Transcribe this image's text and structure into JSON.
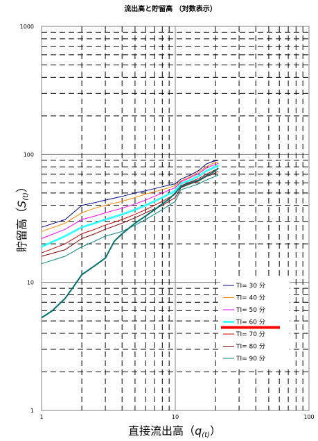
{
  "chart_data": {
    "type": "line",
    "title": "流出高と貯留高 （対数表示）",
    "xlabel": {
      "main": "直接流出高",
      "open": "（",
      "var": "q",
      "sub": "(t)",
      "close": "）"
    },
    "ylabel": {
      "main": "貯留高",
      "open": "（",
      "var": "S",
      "sub": "(t)",
      "close": "）"
    },
    "x_scale": "log",
    "y_scale": "log",
    "xlim": [
      1,
      100
    ],
    "ylim": [
      1,
      1000
    ],
    "x_ticks": [
      1,
      10,
      100
    ],
    "y_ticks": [
      1,
      10,
      100,
      1000
    ],
    "x_tick_labels": [
      "1",
      "10",
      "100"
    ],
    "y_tick_labels": [
      "1",
      "10",
      "100",
      "1000"
    ],
    "grid": true,
    "legend_position": "bottom-right",
    "series": [
      {
        "name": "TI= 30  分",
        "color": "#000080",
        "width": 1,
        "points": [
          [
            1,
            27
          ],
          [
            1.5,
            31
          ],
          [
            2,
            40
          ],
          [
            2.5,
            42
          ],
          [
            3,
            44
          ],
          [
            4,
            47
          ],
          [
            5,
            50
          ],
          [
            6,
            52
          ],
          [
            8,
            56
          ],
          [
            10,
            59
          ],
          [
            11,
            64
          ],
          [
            13,
            69
          ],
          [
            15,
            75
          ],
          [
            17,
            84
          ],
          [
            19,
            88
          ],
          [
            21,
            90
          ]
        ]
      },
      {
        "name": "TI= 40  分",
        "color": "#FF8000",
        "width": 1,
        "points": [
          [
            1,
            25
          ],
          [
            1.5,
            29
          ],
          [
            2,
            35
          ],
          [
            2.5,
            38
          ],
          [
            3,
            40
          ],
          [
            4,
            43
          ],
          [
            5,
            46
          ],
          [
            6,
            49
          ],
          [
            8,
            53
          ],
          [
            10,
            57
          ],
          [
            11,
            62
          ],
          [
            13,
            67
          ],
          [
            15,
            73
          ],
          [
            17,
            80
          ],
          [
            19,
            85
          ],
          [
            21,
            87
          ]
        ]
      },
      {
        "name": "TI= 50  分",
        "color": "#FF00FF",
        "width": 1,
        "points": [
          [
            1,
            22
          ],
          [
            1.5,
            26
          ],
          [
            2,
            31
          ],
          [
            2.5,
            33
          ],
          [
            3,
            35
          ],
          [
            4,
            38
          ],
          [
            5,
            41
          ],
          [
            6,
            44
          ],
          [
            8,
            50
          ],
          [
            10,
            55
          ],
          [
            11,
            61
          ],
          [
            13,
            66
          ],
          [
            15,
            71
          ],
          [
            17,
            78
          ],
          [
            19,
            82
          ],
          [
            21,
            85
          ]
        ]
      },
      {
        "name": "TI= 60  分",
        "color": "#33FFFF",
        "width": 2.8,
        "points": [
          [
            1,
            19
          ],
          [
            1.5,
            23
          ],
          [
            2,
            27
          ],
          [
            2.5,
            29
          ],
          [
            3,
            31
          ],
          [
            4,
            34
          ],
          [
            5,
            37
          ],
          [
            6,
            40
          ],
          [
            8,
            46
          ],
          [
            10,
            52
          ],
          [
            11,
            59
          ],
          [
            13,
            63
          ],
          [
            15,
            68
          ],
          [
            17,
            74
          ],
          [
            19,
            78
          ],
          [
            21,
            82
          ]
        ]
      },
      {
        "name": "TI= 70  分",
        "color": "#C00000",
        "width": 1,
        "points": [
          [
            1,
            17
          ],
          [
            1.5,
            20
          ],
          [
            2,
            24
          ],
          [
            2.5,
            26
          ],
          [
            3,
            28
          ],
          [
            4,
            31
          ],
          [
            5,
            34
          ],
          [
            6,
            37
          ],
          [
            8,
            43
          ],
          [
            10,
            49
          ],
          [
            11,
            57
          ],
          [
            13,
            61
          ],
          [
            15,
            65
          ],
          [
            17,
            70
          ],
          [
            19,
            74
          ],
          [
            21,
            78
          ]
        ]
      },
      {
        "name": "TI= 80  分",
        "color": "#800000",
        "width": 1,
        "points": [
          [
            1,
            16
          ],
          [
            1.5,
            18
          ],
          [
            2,
            22
          ],
          [
            2.5,
            24
          ],
          [
            3,
            26
          ],
          [
            4,
            29
          ],
          [
            5,
            32
          ],
          [
            6,
            35
          ],
          [
            8,
            40
          ],
          [
            10,
            46
          ],
          [
            11,
            55
          ],
          [
            13,
            59
          ],
          [
            15,
            62
          ],
          [
            17,
            67
          ],
          [
            19,
            70
          ],
          [
            21,
            74
          ]
        ]
      },
      {
        "name": "TI= 90  分",
        "color": "#008080",
        "width": 1,
        "points": [
          [
            1,
            14
          ],
          [
            1.5,
            16
          ],
          [
            2,
            19
          ],
          [
            2.5,
            21
          ],
          [
            3,
            23
          ],
          [
            4,
            25
          ],
          [
            5,
            28
          ],
          [
            6,
            31
          ],
          [
            8,
            37
          ],
          [
            10,
            43
          ],
          [
            11,
            53
          ],
          [
            13,
            56
          ],
          [
            15,
            59
          ],
          [
            17,
            63
          ],
          [
            19,
            66
          ],
          [
            21,
            69
          ]
        ]
      }
    ],
    "observed": {
      "color": "#007070",
      "width": 2,
      "points": [
        [
          1,
          5.3
        ],
        [
          1.2,
          6
        ],
        [
          1.5,
          7.5
        ],
        [
          1.7,
          9
        ],
        [
          2,
          11.5
        ],
        [
          2.5,
          13.5
        ],
        [
          3,
          15.5
        ],
        [
          3.5,
          21
        ],
        [
          4,
          24
        ],
        [
          5,
          29
        ],
        [
          6,
          33
        ],
        [
          7,
          37
        ],
        [
          8,
          41
        ],
        [
          9,
          45
        ],
        [
          10,
          50
        ],
        [
          11,
          56
        ],
        [
          13,
          60
        ],
        [
          15,
          63
        ],
        [
          17,
          68
        ],
        [
          19,
          72
        ],
        [
          21,
          78
        ]
      ]
    },
    "highlight": {
      "series_index": 3,
      "color": "#FF0000"
    }
  }
}
